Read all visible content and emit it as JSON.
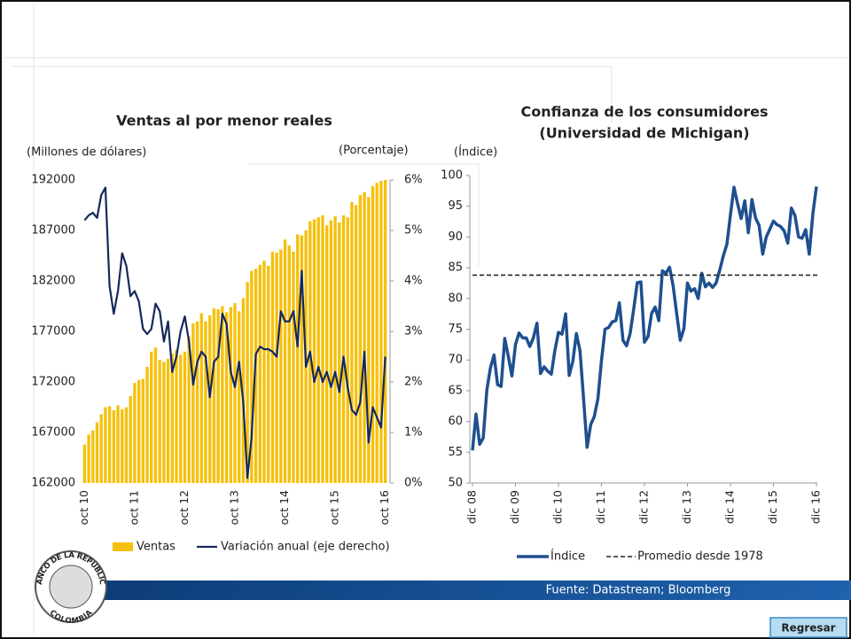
{
  "chart_data": [
    {
      "type": "bar",
      "title": "Ventas al por menor reales",
      "y_label": "(Millones de dólares)",
      "y2_label": "(Porcentaje)",
      "categories": [
        "oct 10",
        null,
        null,
        null,
        null,
        null,
        null,
        null,
        null,
        null,
        null,
        null,
        "oct 11",
        null,
        null,
        null,
        null,
        null,
        null,
        null,
        null,
        null,
        null,
        null,
        "oct 12",
        null,
        null,
        null,
        null,
        null,
        null,
        null,
        null,
        null,
        null,
        null,
        "oct 13",
        null,
        null,
        null,
        null,
        null,
        null,
        null,
        null,
        null,
        null,
        null,
        "oct 14",
        null,
        null,
        null,
        null,
        null,
        null,
        null,
        null,
        null,
        null,
        null,
        "oct 15",
        null,
        null,
        null,
        null,
        null,
        null,
        null,
        null,
        null,
        null,
        null,
        "oct 16"
      ],
      "series": [
        {
          "name": "Ventas",
          "type": "bar",
          "color": "#f5c10e",
          "values": [
            165800,
            166800,
            167200,
            168000,
            168800,
            169500,
            169600,
            169200,
            169700,
            169300,
            169500,
            170600,
            171900,
            172200,
            172300,
            173500,
            175000,
            175400,
            174200,
            174000,
            174300,
            174800,
            175200,
            174700,
            175000,
            176500,
            177800,
            178000,
            178800,
            178000,
            178600,
            179300,
            179200,
            179500,
            178900,
            179400,
            179800,
            179000,
            180300,
            181900,
            183000,
            183200,
            183600,
            184000,
            183500,
            184900,
            184800,
            185100,
            186100,
            185500,
            184900,
            186600,
            186500,
            187000,
            187900,
            188100,
            188300,
            188500,
            187500,
            188000,
            188400,
            187800,
            188500,
            188300,
            189800,
            189500,
            190500,
            190800,
            190300,
            191400,
            191700,
            191900,
            192000
          ]
        },
        {
          "name": "Variación anual (eje derecho)",
          "type": "line",
          "axis": "y2",
          "color": "#14285a",
          "values": [
            5.2,
            5.3,
            5.35,
            5.25,
            5.7,
            5.85,
            3.9,
            3.35,
            3.8,
            4.55,
            4.3,
            3.7,
            3.8,
            3.6,
            3.05,
            2.95,
            3.05,
            3.55,
            3.4,
            2.8,
            3.2,
            2.2,
            2.5,
            3.0,
            3.3,
            2.8,
            1.95,
            2.4,
            2.6,
            2.5,
            1.7,
            2.4,
            2.5,
            3.35,
            3.15,
            2.2,
            1.9,
            2.4,
            1.6,
            0.1,
            0.9,
            2.55,
            2.7,
            2.65,
            2.65,
            2.6,
            2.5,
            3.4,
            3.2,
            3.2,
            3.4,
            2.7,
            4.2,
            2.3,
            2.6,
            2.0,
            2.3,
            2.0,
            2.2,
            1.9,
            2.2,
            1.8,
            2.5,
            1.9,
            1.45,
            1.35,
            1.6,
            2.6,
            0.8,
            1.5,
            1.3,
            1.1,
            2.5
          ]
        }
      ],
      "ylim": [
        162000,
        192000
      ],
      "yticks": [
        162000,
        167000,
        172000,
        177000,
        182000,
        187000,
        192000
      ],
      "y2lim": [
        0,
        6
      ],
      "y2ticks": [
        {
          "value": 0,
          "label": "0%"
        },
        {
          "value": 1,
          "label": "1%"
        },
        {
          "value": 2,
          "label": "2%"
        },
        {
          "value": 3,
          "label": "3%"
        },
        {
          "value": 4,
          "label": "4%"
        },
        {
          "value": 5,
          "label": "5%"
        },
        {
          "value": 6,
          "label": "6%"
        }
      ]
    },
    {
      "type": "line",
      "title": "Confianza de los consumidores",
      "subtitle": "(Universidad de Michigan)",
      "y_label": "(Índice)",
      "categories": [
        "dic 08",
        null,
        null,
        null,
        null,
        null,
        null,
        null,
        null,
        null,
        null,
        null,
        "dic 09",
        null,
        null,
        null,
        null,
        null,
        null,
        null,
        null,
        null,
        null,
        null,
        "dic 10",
        null,
        null,
        null,
        null,
        null,
        null,
        null,
        null,
        null,
        null,
        null,
        "dic 11",
        null,
        null,
        null,
        null,
        null,
        null,
        null,
        null,
        null,
        null,
        null,
        "dic 12",
        null,
        null,
        null,
        null,
        null,
        null,
        null,
        null,
        null,
        null,
        null,
        "dic 13",
        null,
        null,
        null,
        null,
        null,
        null,
        null,
        null,
        null,
        null,
        null,
        "dic 14",
        null,
        null,
        null,
        null,
        null,
        null,
        null,
        null,
        null,
        null,
        null,
        "dic 15",
        null,
        null,
        null,
        null,
        null,
        null,
        null,
        null,
        null,
        null,
        null,
        "dic 16"
      ],
      "series": [
        {
          "name": "Índice",
          "color": "#1f4f8f",
          "values": [
            55.3,
            61.2,
            56.3,
            57.3,
            65.1,
            68.7,
            70.8,
            66.0,
            65.7,
            73.5,
            70.6,
            67.4,
            72.5,
            74.4,
            73.6,
            73.6,
            72.2,
            73.6,
            76.0,
            67.8,
            68.9,
            68.2,
            67.7,
            71.6,
            74.5,
            74.2,
            77.5,
            67.5,
            69.8,
            74.3,
            71.5,
            63.7,
            55.8,
            59.5,
            60.8,
            63.7,
            69.9,
            75.0,
            75.3,
            76.2,
            76.4,
            79.3,
            73.2,
            72.3,
            74.3,
            78.3,
            82.6,
            82.7,
            72.9,
            73.8,
            77.6,
            78.6,
            76.4,
            84.5,
            84.1,
            85.1,
            82.1,
            77.5,
            73.2,
            75.1,
            82.5,
            81.2,
            81.6,
            80.0,
            84.1,
            81.9,
            82.5,
            81.8,
            82.5,
            84.6,
            86.9,
            88.8,
            93.6,
            98.1,
            95.4,
            93.0,
            95.9,
            90.7,
            96.1,
            93.1,
            91.9,
            87.2,
            90.0,
            91.3,
            92.6,
            92.0,
            91.7,
            91.0,
            89.0,
            94.7,
            93.5,
            90.0,
            89.8,
            91.2,
            87.2,
            93.8,
            98.2
          ]
        }
      ],
      "reference": {
        "name": "Promedio desde 1978",
        "value": 83.8,
        "color": "#222222",
        "style": "dashed"
      },
      "ylim": [
        50,
        100
      ],
      "yticks": [
        50,
        55,
        60,
        65,
        70,
        75,
        80,
        85,
        90,
        95,
        100
      ]
    }
  ],
  "footer": {
    "source": "Fuente: Datastream; Bloomberg",
    "button": "Regresar"
  },
  "logo": {
    "top": "BANCO DE LA REPUBLICA",
    "bottom": "COLOMBIA"
  }
}
